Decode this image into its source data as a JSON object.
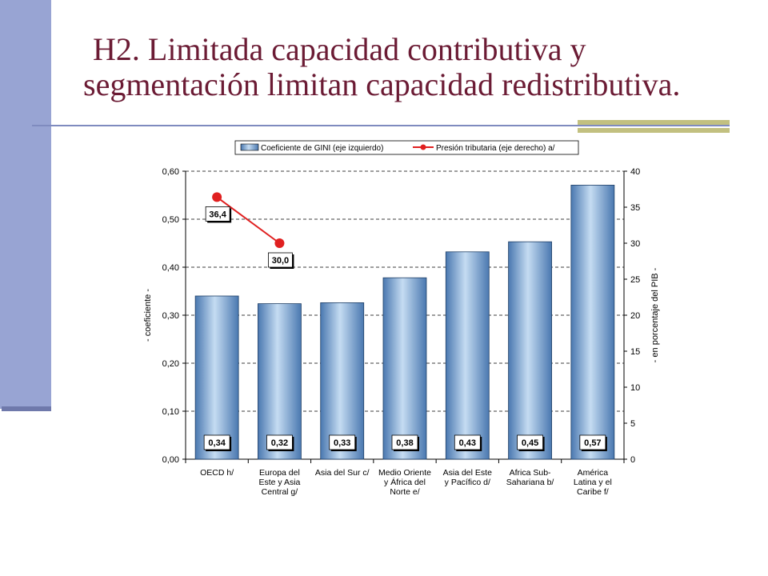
{
  "slide": {
    "title_line1": "H2. Limitada capacidad contributiva y",
    "title_line2": "segmentación limitan capacidad redistributiva."
  },
  "colors": {
    "title": "#6b1b34",
    "bar_light": "#c5dcf2",
    "bar_mid": "#7fb0e0",
    "bar_dark": "#4a78b0",
    "line": "#e02020",
    "sidebar": "#98a4d3",
    "accent": "#c2c080"
  },
  "chart_data": {
    "type": "bar",
    "categories": [
      [
        "OECD h/"
      ],
      [
        "Europa del",
        "Este y Asia",
        "Central g/"
      ],
      [
        "Asia del Sur c/"
      ],
      [
        "Medio Oriente",
        "y África del",
        "Norte e/"
      ],
      [
        "Asia del Este",
        "y Pacífico d/"
      ],
      [
        "Africa Sub-",
        "Sahariana b/"
      ],
      [
        "América",
        "Latina y el",
        "Caribe f/"
      ]
    ],
    "series": [
      {
        "name": "Coeficiente de GINI (eje izquierdo)",
        "type": "bar",
        "axis": "left",
        "values": [
          0.34,
          0.324,
          0.326,
          0.378,
          0.432,
          0.453,
          0.571
        ],
        "labels": [
          "0,34",
          "0,32",
          "0,33",
          "0,38",
          "0,43",
          "0,45",
          "0,57"
        ]
      },
      {
        "name": "Presión tributaria (eje derecho) a/",
        "type": "line",
        "axis": "right",
        "values": [
          36.4,
          30.0,
          null,
          null,
          null,
          null,
          null
        ],
        "labels": [
          "36,4",
          "30,0",
          "",
          "",
          "",
          "",
          ""
        ]
      }
    ],
    "ylabel": "- coeficiente -",
    "ylabel_right": "- en porcentaje del PIB -",
    "ylim": [
      0,
      0.6
    ],
    "ylim_right": [
      0,
      40
    ],
    "yticks": [
      "0,00",
      "0,10",
      "0,20",
      "0,30",
      "0,40",
      "0,50",
      "0,60"
    ],
    "yticks_right": [
      "0",
      "5",
      "10",
      "15",
      "20",
      "25",
      "30",
      "35",
      "40"
    ],
    "grid": true,
    "legend": "top"
  }
}
